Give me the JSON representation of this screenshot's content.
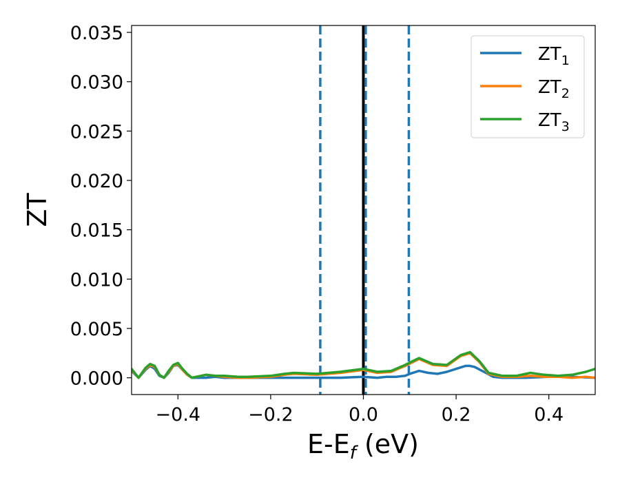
{
  "chart_data": {
    "type": "line",
    "xlabel_parts": {
      "base": "E-E",
      "sub": "f",
      "tail": " (eV)"
    },
    "ylabel": "ZT",
    "xlim": [
      -0.5,
      0.5
    ],
    "ylim": [
      -0.0017,
      0.0357
    ],
    "xticks": [
      -0.4,
      -0.2,
      0.0,
      0.2,
      0.4
    ],
    "xtick_labels": [
      "−0.4",
      "−0.2",
      "0.0",
      "0.2",
      "0.4"
    ],
    "yticks": [
      0.0,
      0.005,
      0.01,
      0.015,
      0.02,
      0.025,
      0.03,
      0.035
    ],
    "ytick_labels": [
      "0.000",
      "0.005",
      "0.010",
      "0.015",
      "0.020",
      "0.025",
      "0.030",
      "0.035"
    ],
    "legend_position": "top-right",
    "vlines": [
      {
        "x": -0.093,
        "style": "dashed",
        "color": "#1f77b4"
      },
      {
        "x": 0.0,
        "style": "solid",
        "color": "#000000"
      },
      {
        "x": 0.005,
        "style": "dashed",
        "color": "#1f77b4"
      },
      {
        "x": 0.098,
        "style": "dashed",
        "color": "#1f77b4"
      }
    ],
    "series": [
      {
        "name": "ZT",
        "sub": "1",
        "color": "#1f77b4",
        "x": [
          -0.5,
          -0.485,
          -0.47,
          -0.46,
          -0.45,
          -0.44,
          -0.43,
          -0.42,
          -0.41,
          -0.4,
          -0.39,
          -0.38,
          -0.37,
          -0.36,
          -0.35,
          -0.34,
          -0.32,
          -0.3,
          -0.25,
          -0.2,
          -0.15,
          -0.1,
          -0.05,
          0.0,
          0.03,
          0.05,
          0.07,
          0.09,
          0.1,
          0.12,
          0.14,
          0.16,
          0.18,
          0.2,
          0.22,
          0.23,
          0.24,
          0.26,
          0.28,
          0.3,
          0.35,
          0.4,
          0.45,
          0.5
        ],
        "y": [
          0.0007,
          0.0,
          0.0008,
          0.0012,
          0.0009,
          0.0002,
          0.0,
          0.0005,
          0.0012,
          0.0013,
          0.0008,
          0.0003,
          0.0,
          0.0,
          0.0,
          0.0,
          0.0001,
          0.0,
          0.0,
          0.0,
          0.0,
          0.0,
          0.0,
          0.0001,
          0.0,
          0.0001,
          0.0001,
          0.0002,
          0.0004,
          0.0007,
          0.0005,
          0.0004,
          0.0006,
          0.0009,
          0.0012,
          0.0012,
          0.0011,
          0.0006,
          0.0001,
          0.0,
          0.0,
          0.0001,
          0.0001,
          0.0
        ]
      },
      {
        "name": "ZT",
        "sub": "2",
        "color": "#ff7f0e",
        "x": [
          -0.5,
          -0.485,
          -0.47,
          -0.46,
          -0.45,
          -0.44,
          -0.43,
          -0.42,
          -0.41,
          -0.4,
          -0.39,
          -0.38,
          -0.37,
          -0.36,
          -0.35,
          -0.34,
          -0.32,
          -0.3,
          -0.27,
          -0.25,
          -0.2,
          -0.17,
          -0.15,
          -0.1,
          -0.05,
          0.0,
          0.03,
          0.06,
          0.09,
          0.12,
          0.15,
          0.18,
          0.21,
          0.23,
          0.25,
          0.27,
          0.3,
          0.33,
          0.36,
          0.39,
          0.42,
          0.45,
          0.48,
          0.5
        ],
        "y": [
          0.0008,
          0.0,
          0.0009,
          0.0013,
          0.0011,
          0.0003,
          0.0,
          0.0006,
          0.0012,
          0.0014,
          0.0008,
          0.0003,
          0.0,
          0.0001,
          0.0002,
          0.0003,
          0.0002,
          0.0001,
          0.0,
          0.0,
          0.0001,
          0.0003,
          0.0004,
          0.0003,
          0.0005,
          0.0008,
          0.0005,
          0.0006,
          0.0012,
          0.0019,
          0.0013,
          0.0012,
          0.0022,
          0.0025,
          0.0016,
          0.0004,
          0.0001,
          0.0001,
          0.0002,
          0.0001,
          0.0001,
          0.0,
          0.0001,
          0.0
        ]
      },
      {
        "name": "ZT",
        "sub": "3",
        "color": "#2ca02c",
        "x": [
          -0.5,
          -0.485,
          -0.47,
          -0.46,
          -0.45,
          -0.44,
          -0.43,
          -0.42,
          -0.41,
          -0.4,
          -0.39,
          -0.38,
          -0.37,
          -0.36,
          -0.35,
          -0.34,
          -0.32,
          -0.3,
          -0.27,
          -0.25,
          -0.2,
          -0.17,
          -0.15,
          -0.1,
          -0.05,
          0.0,
          0.03,
          0.06,
          0.09,
          0.12,
          0.15,
          0.18,
          0.21,
          0.23,
          0.25,
          0.27,
          0.3,
          0.33,
          0.36,
          0.39,
          0.42,
          0.45,
          0.48,
          0.5
        ],
        "y": [
          0.0009,
          0.0,
          0.001,
          0.0014,
          0.0012,
          0.0003,
          0.0,
          0.0007,
          0.0013,
          0.0015,
          0.0009,
          0.0004,
          0.0,
          0.0001,
          0.0002,
          0.0003,
          0.0002,
          0.0002,
          0.0001,
          0.0001,
          0.0002,
          0.0004,
          0.0005,
          0.0004,
          0.0006,
          0.0009,
          0.0006,
          0.0007,
          0.0013,
          0.002,
          0.0014,
          0.0013,
          0.0023,
          0.0026,
          0.0017,
          0.0005,
          0.0002,
          0.0002,
          0.0005,
          0.0003,
          0.0002,
          0.0003,
          0.0006,
          0.0009
        ]
      }
    ]
  }
}
